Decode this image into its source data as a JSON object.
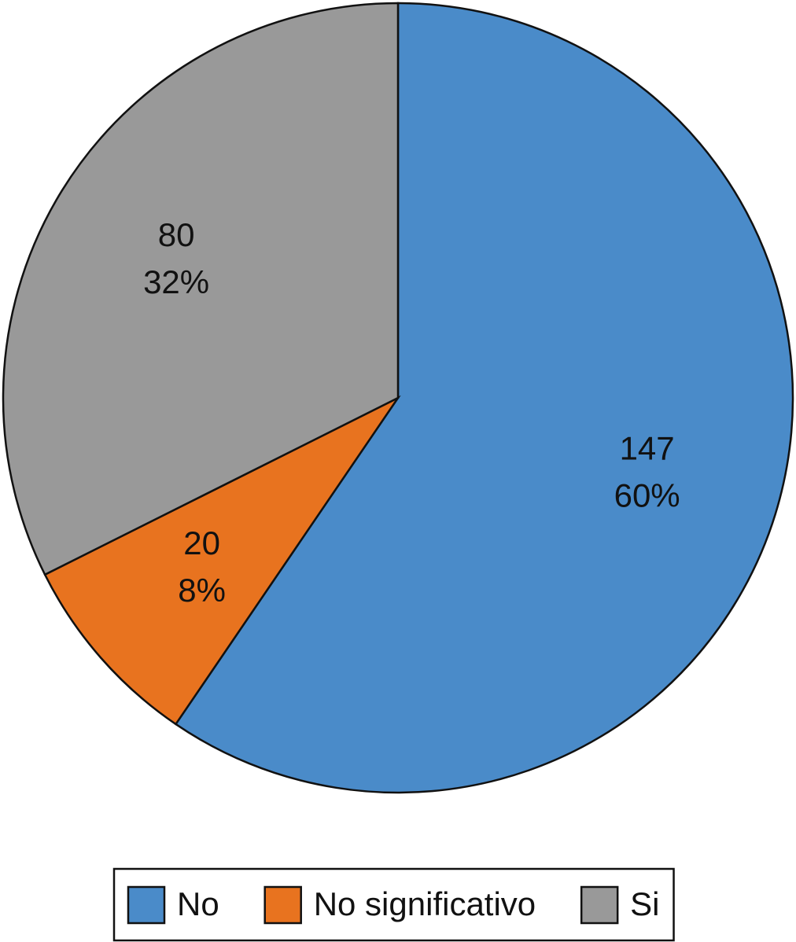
{
  "chart_data": {
    "type": "pie",
    "categories": [
      "No",
      "No significativo",
      "Si"
    ],
    "values": [
      147,
      20,
      80
    ],
    "percent_values": [
      60,
      8,
      32
    ],
    "percent_labels": [
      "60%",
      "8%",
      "32%"
    ],
    "colors": [
      "#4a8bc9",
      "#e8731f",
      "#999999"
    ],
    "legend": "bottom"
  }
}
